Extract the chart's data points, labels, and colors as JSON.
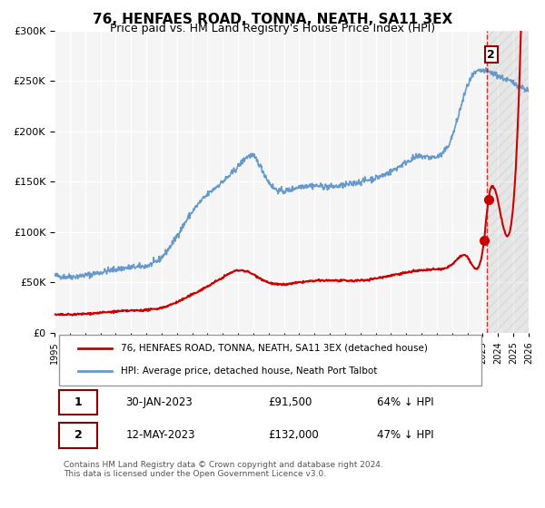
{
  "title": "76, HENFAES ROAD, TONNA, NEATH, SA11 3EX",
  "subtitle": "Price paid vs. HM Land Registry's House Price Index (HPI)",
  "legend_label_red": "76, HENFAES ROAD, TONNA, NEATH, SA11 3EX (detached house)",
  "legend_label_blue": "HPI: Average price, detached house, Neath Port Talbot",
  "annotation1_label": "1",
  "annotation1_date": "30-JAN-2023",
  "annotation1_price": "£91,500",
  "annotation1_hpi": "64% ↓ HPI",
  "annotation2_label": "2",
  "annotation2_date": "12-MAY-2023",
  "annotation2_price": "£132,000",
  "annotation2_hpi": "47% ↓ HPI",
  "footer": "Contains HM Land Registry data © Crown copyright and database right 2024.\nThis data is licensed under the Open Government Licence v3.0.",
  "x_start": 1995,
  "x_end": 2026,
  "y_min": 0,
  "y_max": 300000,
  "y_ticks": [
    0,
    50000,
    100000,
    150000,
    200000,
    250000,
    300000
  ],
  "x_ticks": [
    1995,
    1996,
    1997,
    1998,
    1999,
    2000,
    2001,
    2002,
    2003,
    2004,
    2005,
    2006,
    2007,
    2008,
    2009,
    2010,
    2011,
    2012,
    2013,
    2014,
    2015,
    2016,
    2017,
    2018,
    2019,
    2020,
    2021,
    2022,
    2023,
    2024,
    2025,
    2026
  ],
  "sale1_x": 2023.08,
  "sale1_y": 91500,
  "sale2_x": 2023.37,
  "sale2_y": 132000,
  "dashed_line_x": 2023.25,
  "background_color": "#ffffff",
  "plot_bg_color": "#f5f5f5",
  "grid_color": "#ffffff",
  "red_color": "#cc0000",
  "blue_color": "#6699cc",
  "title_fontsize": 11,
  "subtitle_fontsize": 9
}
